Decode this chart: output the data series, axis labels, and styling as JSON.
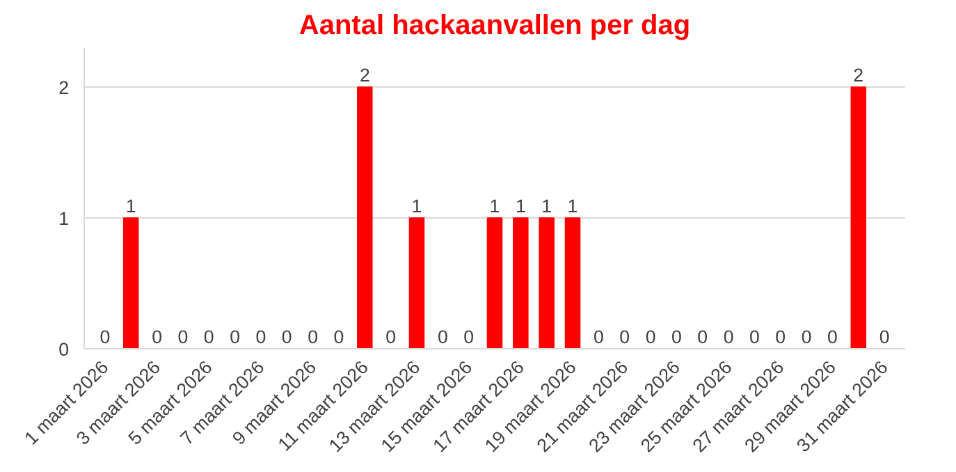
{
  "chart_data": {
    "type": "bar",
    "title": "Aantal hackaanvallen per dag",
    "categories": [
      "1 maart 2026",
      null,
      "3 maart 2026",
      null,
      "5 maart 2026",
      null,
      "7 maart 2026",
      null,
      "9 maart 2026",
      null,
      "11 maart 2026",
      null,
      "13 maart 2026",
      null,
      "15 maart 2026",
      null,
      "17 maart 2026",
      null,
      "19 maart 2026",
      null,
      "21 maart 2026",
      null,
      "23 maart 2026",
      null,
      "25 maart 2026",
      null,
      "27 maart 2026",
      null,
      "29 maart 2026",
      null,
      "31 maart 2026"
    ],
    "values": [
      0,
      1,
      0,
      0,
      0,
      0,
      0,
      0,
      0,
      0,
      2,
      0,
      1,
      0,
      0,
      1,
      1,
      1,
      1,
      0,
      0,
      0,
      0,
      0,
      0,
      0,
      0,
      0,
      0,
      2,
      0
    ],
    "color": "#ff0000",
    "ylim": [
      0,
      2.3
    ],
    "yticks": [
      0,
      1,
      2
    ],
    "grid": "y",
    "data_labels": true
  }
}
